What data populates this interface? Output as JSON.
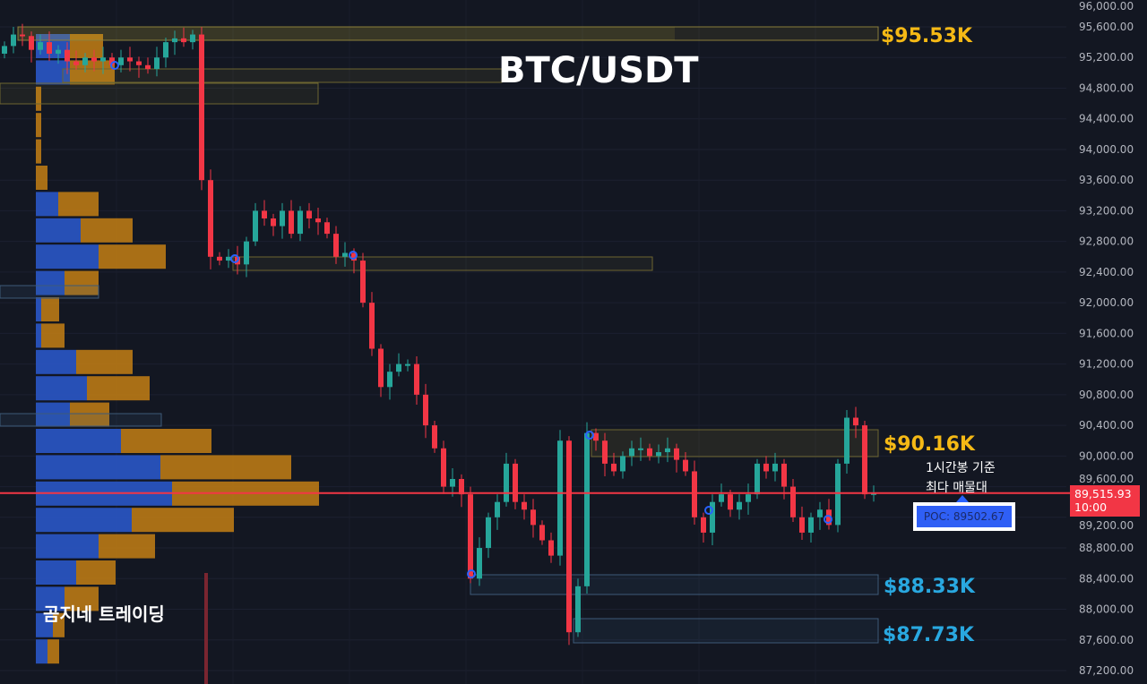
{
  "title": "BTC/USDT",
  "brand": "곰지네 트레이딩",
  "annotation": {
    "line1": "1시간봉 기준",
    "line2": "최다 매물대",
    "poc_label": "POC: 89502.67"
  },
  "current_price": {
    "price": "89,515.93",
    "countdown": "10:00"
  },
  "level_labels": [
    {
      "text": "$95.53K",
      "color": "#f5b915"
    },
    {
      "text": "$90.16K",
      "color": "#f5b915"
    },
    {
      "text": "$88.33K",
      "color": "#29a8e0"
    },
    {
      "text": "$87.73K",
      "color": "#29a8e0"
    }
  ],
  "colors": {
    "up": "#26a69a",
    "down": "#f23645",
    "background": "#131722",
    "profile_buy": "#2a56c6",
    "profile_sell": "#c47f14",
    "current_line": "#f23645"
  },
  "chart_data": {
    "type": "candlestick",
    "title": "BTC/USDT",
    "ylim": [
      87100,
      95800
    ],
    "y_ticks": [
      "96,000.00",
      "95,600.00",
      "95,200.00",
      "94,800.00",
      "94,400.00",
      "94,000.00",
      "93,600.00",
      "93,200.00",
      "92,800.00",
      "92,400.00",
      "92,000.00",
      "91,600.00",
      "91,200.00",
      "90,800.00",
      "90,400.00",
      "90,000.00",
      "89,600.00",
      "89,200.00",
      "88,800.00",
      "88,400.00",
      "88,000.00",
      "87,600.00",
      "87,200.00"
    ],
    "first_open": 95250,
    "closes": [
      95350,
      95500,
      95480,
      95300,
      95400,
      95250,
      95300,
      95150,
      95100,
      95200,
      95150,
      95200,
      95100,
      95200,
      95150,
      95100,
      95050,
      95200,
      95400,
      95450,
      95400,
      95500,
      93600,
      92600,
      92550,
      92600,
      92500,
      92800,
      93200,
      93100,
      93000,
      93200,
      92900,
      93200,
      93100,
      93050,
      92900,
      92600,
      92650,
      92550,
      92000,
      91400,
      90900,
      91100,
      91200,
      91200,
      90800,
      90400,
      90100,
      89600,
      89700,
      89500,
      88400,
      88800,
      89200,
      89400,
      89900,
      89400,
      89300,
      89100,
      88900,
      88700,
      90200,
      87700,
      88300,
      90300,
      90200,
      89900,
      89800,
      90000,
      90100,
      90100,
      90000,
      90050,
      90100,
      89950,
      89800,
      89200,
      89000,
      89400,
      89500,
      89300,
      89400,
      89500,
      89900,
      89800,
      89900,
      89600,
      89200,
      89000,
      89200,
      89300,
      89100,
      89900,
      90500,
      90400,
      89500,
      89516
    ],
    "levels": [
      95530,
      90160,
      88330,
      87730
    ],
    "current": 89515.93,
    "poc": 89502.67,
    "volume_profile": [
      {
        "buy": 38,
        "sell": 37
      },
      {
        "buy": 38,
        "sell": 50
      },
      {
        "buy": 0,
        "sell": 6
      },
      {
        "buy": 0,
        "sell": 6
      },
      {
        "buy": 0,
        "sell": 6
      },
      {
        "buy": 0,
        "sell": 13
      },
      {
        "buy": 25,
        "sell": 45
      },
      {
        "buy": 50,
        "sell": 58
      },
      {
        "buy": 70,
        "sell": 75
      },
      {
        "buy": 32,
        "sell": 38
      },
      {
        "buy": 6,
        "sell": 20
      },
      {
        "buy": 6,
        "sell": 26
      },
      {
        "buy": 45,
        "sell": 63
      },
      {
        "buy": 57,
        "sell": 70
      },
      {
        "buy": 38,
        "sell": 44
      },
      {
        "buy": 95,
        "sell": 101
      },
      {
        "buy": 139,
        "sell": 146
      },
      {
        "buy": 152,
        "sell": 164
      },
      {
        "buy": 107,
        "sell": 114
      },
      {
        "buy": 70,
        "sell": 63
      },
      {
        "buy": 45,
        "sell": 44
      },
      {
        "buy": 32,
        "sell": 38
      },
      {
        "buy": 19,
        "sell": 13
      },
      {
        "buy": 13,
        "sell": 13
      }
    ]
  }
}
